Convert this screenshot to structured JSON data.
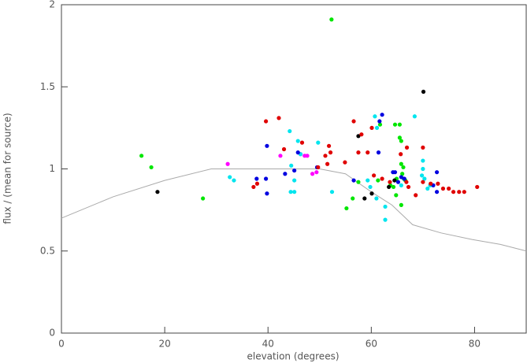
{
  "chart_data": {
    "type": "scatter",
    "x_label": "elevation (degrees)",
    "y_label": "flux / (mean for source)",
    "xlim": [
      0,
      90
    ],
    "xticks": [
      0,
      20,
      40,
      60,
      80
    ],
    "ylim": [
      0,
      2
    ],
    "yticks": [
      0,
      0.5,
      1,
      1.5,
      2
    ],
    "curve": {
      "color": "#aaaaaa",
      "x": [
        0,
        10,
        20,
        29,
        40,
        50,
        55,
        60,
        64,
        68,
        73.5,
        79.5,
        85,
        90
      ],
      "values": [
        0.7,
        0.83,
        0.93,
        1.0,
        1.0,
        1.0,
        0.97,
        0.86,
        0.78,
        0.66,
        0.61,
        0.57,
        0.54,
        0.5
      ]
    },
    "series": [
      {
        "color": "#00e600",
        "x": [
          15.5,
          17.4,
          27.4,
          52.3,
          55.2,
          56.4,
          57.5,
          61.3,
          61.7,
          64.6,
          65.5,
          65.5,
          65.8,
          65.8,
          66.2,
          66.0,
          66.3,
          64.9,
          64.3,
          64.8,
          65.8,
          63.7,
          66.6
        ],
        "values": [
          1.08,
          1.01,
          0.82,
          1.91,
          0.76,
          0.82,
          0.92,
          0.93,
          1.27,
          1.27,
          1.27,
          1.19,
          1.17,
          1.03,
          1.01,
          0.97,
          0.94,
          0.94,
          0.89,
          0.84,
          0.78,
          0.9,
          0.93
        ]
      },
      {
        "color": "#000000",
        "x": [
          18.6,
          57.5,
          70.1,
          58.7,
          60.1,
          63.4,
          64.5
        ],
        "values": [
          0.86,
          1.2,
          1.47,
          0.82,
          0.85,
          0.89,
          0.93
        ]
      },
      {
        "color": "#ff00ff",
        "x": [
          32.2,
          42.4,
          47.1,
          47.6,
          48.6,
          49.4,
          46.3
        ],
        "values": [
          1.03,
          1.08,
          1.08,
          1.08,
          0.97,
          0.98,
          1.09
        ]
      },
      {
        "color": "#00e5ee",
        "x": [
          32.6,
          33.4,
          44.2,
          45.8,
          46.3,
          44.5,
          44.4,
          45.1,
          45.1,
          49.7,
          52.4,
          59.3,
          59.8,
          60.7,
          61.1,
          61.0,
          62.7,
          62.7,
          68.4,
          70.0,
          70.0,
          69.8,
          70.3,
          71.4,
          70.9,
          65.8
        ],
        "values": [
          0.95,
          0.93,
          1.23,
          1.17,
          1.09,
          1.02,
          0.86,
          0.86,
          0.93,
          1.16,
          0.86,
          0.93,
          0.89,
          1.32,
          1.25,
          0.82,
          0.77,
          0.69,
          1.32,
          1.05,
          1.0,
          0.96,
          0.94,
          0.9,
          0.88,
          0.9
        ]
      },
      {
        "color": "#0000e0",
        "x": [
          37.8,
          39.6,
          39.8,
          39.8,
          45.8,
          43.3,
          45.1,
          49.5,
          56.6,
          61.6,
          62.1,
          61.4,
          64.2,
          64.6,
          65.2,
          65.8,
          66.4,
          72.7,
          72.0,
          72.7
        ],
        "values": [
          0.94,
          0.94,
          1.14,
          0.85,
          1.1,
          0.97,
          0.99,
          1.01,
          0.93,
          1.29,
          1.33,
          1.1,
          0.98,
          0.98,
          0.92,
          0.95,
          0.94,
          0.98,
          0.9,
          0.86
        ]
      },
      {
        "color": "#e00000",
        "x": [
          37.2,
          37.9,
          39.6,
          42.1,
          43.1,
          46.6,
          49.7,
          51.8,
          52.1,
          54.9,
          51.5,
          51.1,
          56.6,
          57.5,
          58.1,
          59.3,
          60.1,
          60.5,
          62.1,
          63.6,
          66.9,
          66.8,
          67.2,
          70.0,
          70.0,
          68.6,
          71.5,
          72.9,
          73.9,
          75.0,
          75.9,
          77.0,
          78.0,
          80.5,
          65.7
        ],
        "values": [
          0.89,
          0.91,
          1.29,
          1.31,
          1.12,
          1.16,
          1.01,
          1.14,
          1.1,
          1.04,
          1.03,
          1.08,
          1.29,
          1.1,
          1.21,
          1.1,
          1.25,
          0.96,
          0.94,
          0.92,
          1.13,
          0.92,
          0.89,
          1.13,
          0.92,
          0.84,
          0.91,
          0.91,
          0.88,
          0.88,
          0.86,
          0.86,
          0.86,
          0.89,
          1.09
        ]
      }
    ]
  }
}
